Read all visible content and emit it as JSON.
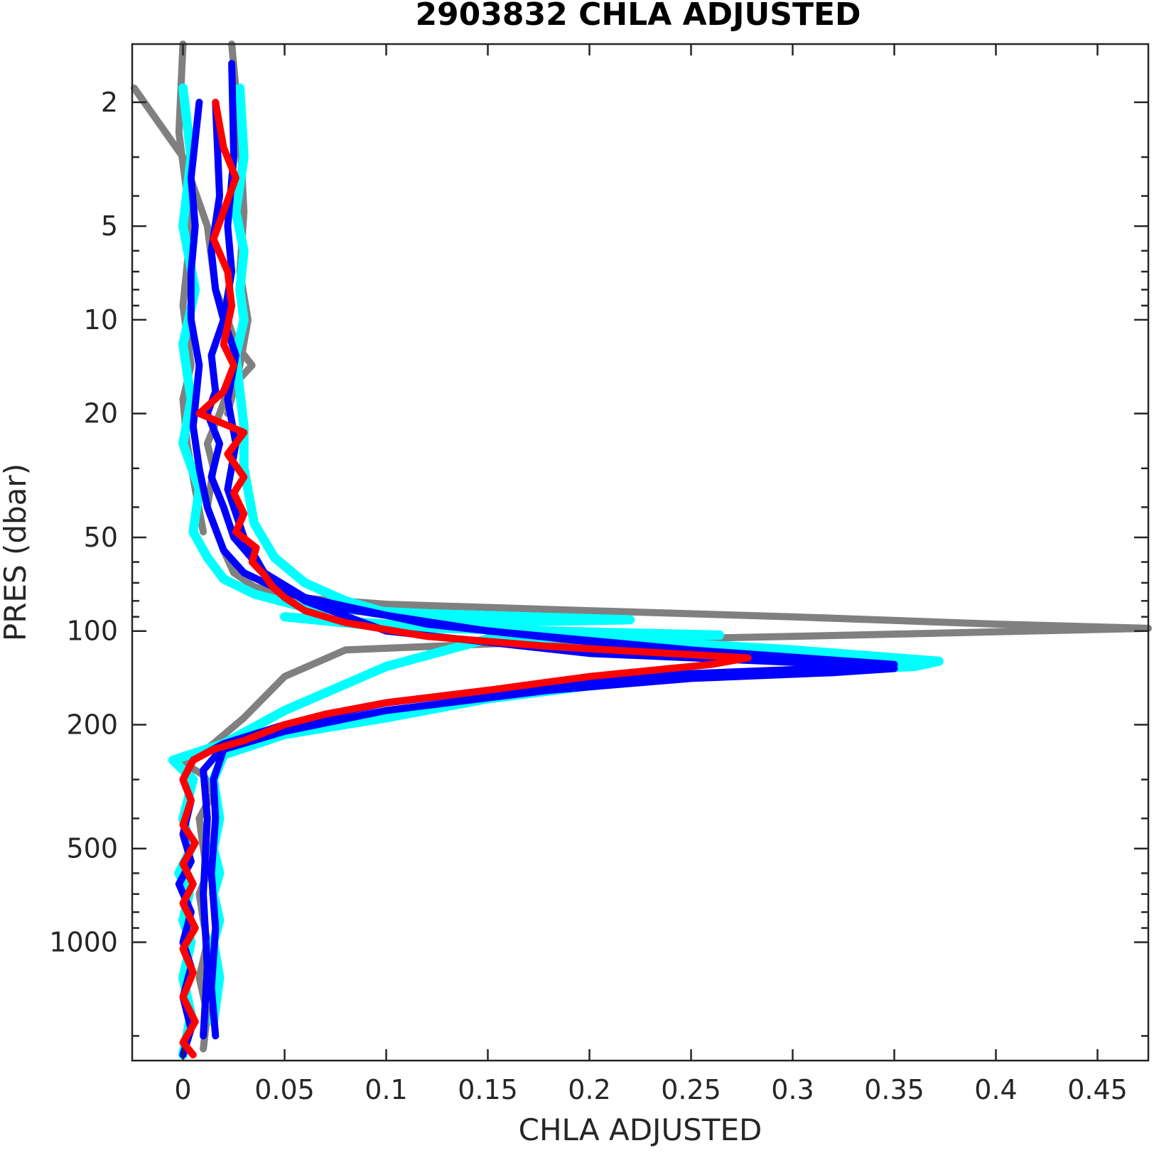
{
  "chart_data": {
    "type": "line",
    "title": "2903832  CHLA ADJUSTED",
    "xlabel": "CHLA ADJUSTED",
    "ylabel": "PRES (dbar)",
    "xlim": [
      -0.025,
      0.475
    ],
    "ylim": [
      1.3,
      2400
    ],
    "y_scale": "log",
    "y_reversed": true,
    "grid": false,
    "x_ticks": [
      0,
      0.05,
      0.1,
      0.15,
      0.2,
      0.25,
      0.3,
      0.35,
      0.4,
      0.45
    ],
    "x_tick_labels": [
      "0",
      "0.05",
      "0.1",
      "0.15",
      "0.2",
      "0.25",
      "0.3",
      "0.35",
      "0.4",
      "0.45"
    ],
    "y_ticks": [
      2,
      5,
      10,
      20,
      50,
      100,
      200,
      500,
      1000
    ],
    "y_tick_labels": [
      "2",
      "5",
      "10",
      "20",
      "50",
      "100",
      "200",
      "500",
      "1000"
    ],
    "colors": {
      "gray": "#808080",
      "cyan": "#00ffff",
      "blue": "#0000ff",
      "red": "#ff0000"
    },
    "series": [
      {
        "color": "gray",
        "x": [
          -0.024,
          0.0,
          0.012,
          0.016,
          0.022,
          0.026,
          0.034,
          0.022,
          0.018,
          0.012,
          0.015,
          0.012,
          0.02,
          0.025,
          0.035,
          0.055,
          0.1,
          0.2,
          0.3,
          0.4,
          0.475,
          0.33,
          0.18,
          0.08,
          0.05,
          0.03,
          0.015,
          0.008,
          0.0,
          0.01,
          0.015,
          0.008,
          0.01,
          0.012,
          0.008,
          0.01,
          0.012,
          0.008,
          0.012,
          0.01
        ],
        "y": [
          1.8,
          3.0,
          5.0,
          8.0,
          10.0,
          12.0,
          14.0,
          17.0,
          20.0,
          25.0,
          30.0,
          40.0,
          55.0,
          65.0,
          72.0,
          78.0,
          82.0,
          86.0,
          90.0,
          95.0,
          98.0,
          103.0,
          108.0,
          115.0,
          140.0,
          190.0,
          230.0,
          250.0,
          265.0,
          290.0,
          330.0,
          400.0,
          500.0,
          600.0,
          700.0,
          850.0,
          1000.0,
          1300.0,
          1700.0,
          2200.0
        ]
      },
      {
        "color": "gray",
        "x": [
          0.0,
          -0.002,
          0.004,
          0.0,
          0.004,
          0.0,
          0.002,
          0.006,
          0.01
        ],
        "y": [
          1.3,
          2.5,
          5.0,
          9.0,
          14.0,
          18.0,
          25.0,
          35.0,
          48.0
        ]
      },
      {
        "color": "gray",
        "x": [
          0.024,
          0.028,
          0.03,
          0.028,
          0.032,
          0.028,
          0.022
        ],
        "y": [
          1.3,
          2.5,
          4.5,
          7.0,
          10.0,
          14.0,
          20.0
        ]
      },
      {
        "color": "cyan",
        "x": [
          0.0,
          0.004,
          0.0,
          0.006,
          0.0,
          0.004,
          0.0,
          0.008,
          0.005,
          0.012,
          0.02,
          0.035,
          0.06,
          0.12,
          0.22,
          0.1,
          0.05,
          0.1,
          0.18,
          0.264,
          0.15,
          0.1,
          0.05,
          0.02,
          -0.005,
          0.005,
          0.0,
          0.004,
          -0.002,
          0.003,
          0.0,
          0.004,
          0.0,
          0.004,
          0.0
        ],
        "y": [
          1.8,
          3.0,
          5.0,
          8.0,
          12.0,
          18.0,
          25.0,
          35.0,
          48.0,
          58.0,
          68.0,
          76.0,
          84.0,
          88.0,
          92.0,
          95.0,
          90.0,
          97.0,
          100.0,
          103.0,
          106.0,
          130.0,
          180.0,
          230.0,
          260.0,
          300.0,
          400.0,
          500.0,
          600.0,
          700.0,
          850.0,
          1000.0,
          1300.0,
          1700.0,
          2300.0
        ]
      },
      {
        "color": "cyan",
        "x": [
          0.028,
          0.03,
          0.026,
          0.03,
          0.028,
          0.03,
          0.026,
          0.028,
          0.03,
          0.03,
          0.035,
          0.045,
          0.06,
          0.08,
          0.12,
          0.2,
          0.3,
          0.372,
          0.36,
          0.3,
          0.25,
          0.2,
          0.15,
          0.1,
          0.05,
          0.02,
          0.015,
          0.018,
          0.015,
          0.018,
          0.015,
          0.018,
          0.015,
          0.018,
          0.015
        ],
        "y": [
          1.8,
          3.0,
          4.5,
          6.0,
          8.0,
          10.0,
          13.0,
          17.0,
          22.0,
          30.0,
          45.0,
          58.0,
          70.0,
          80.0,
          95.0,
          105.0,
          115.0,
          125.0,
          130.0,
          135.0,
          140.0,
          150.0,
          165.0,
          190.0,
          215.0,
          250.0,
          300.0,
          400.0,
          500.0,
          600.0,
          700.0,
          850.0,
          1000.0,
          1300.0,
          1800.0
        ]
      },
      {
        "color": "blue",
        "x": [
          0.008,
          0.004,
          0.006,
          0.004,
          0.004,
          0.008,
          0.005,
          0.008,
          0.012,
          0.02,
          0.03,
          0.05,
          0.08,
          0.15,
          0.25,
          0.35,
          0.32,
          0.25,
          0.2,
          0.15,
          0.1,
          0.05,
          0.02,
          0.005,
          0.0,
          0.004,
          0.0,
          0.004,
          -0.002,
          0.004,
          0.0,
          0.004,
          0.0,
          0.004,
          0.0
        ],
        "y": [
          2.0,
          3.5,
          5.0,
          7.0,
          10.0,
          14.0,
          22.0,
          30.0,
          40.0,
          55.0,
          65.0,
          75.0,
          85.0,
          100.0,
          115.0,
          128.0,
          133.0,
          138.0,
          145.0,
          155.0,
          170.0,
          200.0,
          230.0,
          260.0,
          300.0,
          350.0,
          450.0,
          550.0,
          650.0,
          800.0,
          1000.0,
          1200.0,
          1500.0,
          1900.0,
          2300.0
        ]
      },
      {
        "color": "blue",
        "x": [
          0.016,
          0.018,
          0.014,
          0.016,
          0.02,
          0.014,
          0.016,
          0.012,
          0.018,
          0.014,
          0.02,
          0.025,
          0.04,
          0.06,
          0.1,
          0.2,
          0.3,
          0.35,
          0.32,
          0.25,
          0.18,
          0.1,
          0.05,
          0.02,
          0.015,
          0.016,
          0.014,
          0.016,
          0.014,
          0.016
        ],
        "y": [
          2.0,
          4.0,
          6.0,
          8.0,
          10.0,
          13.0,
          17.0,
          20.0,
          25.0,
          32.0,
          40.0,
          50.0,
          65.0,
          80.0,
          100.0,
          118.0,
          126.0,
          132.0,
          136.0,
          142.0,
          155.0,
          180.0,
          210.0,
          240.0,
          300.0,
          400.0,
          600.0,
          900.0,
          1400.0,
          2000.0
        ]
      },
      {
        "color": "blue",
        "x": [
          0.024,
          0.025,
          0.022,
          0.024,
          0.02,
          0.026,
          0.022,
          0.026,
          0.022,
          0.03,
          0.04,
          0.06,
          0.12,
          0.22,
          0.3,
          0.34,
          0.25,
          0.18,
          0.1,
          0.05,
          0.02,
          0.01,
          0.012,
          0.01,
          0.012,
          0.01
        ],
        "y": [
          1.5,
          3.0,
          5.0,
          7.0,
          10.0,
          13.0,
          18.0,
          25.0,
          35.0,
          50.0,
          65.0,
          78.0,
          95.0,
          112.0,
          124.0,
          130.0,
          137.0,
          148.0,
          170.0,
          200.0,
          235.0,
          280.0,
          400.0,
          700.0,
          1200.0,
          2000.0
        ]
      },
      {
        "color": "red",
        "x": [
          0.016,
          0.02,
          0.026,
          0.015,
          0.022,
          0.024,
          0.02,
          0.025,
          0.02,
          0.008,
          0.03,
          0.022,
          0.03,
          0.025,
          0.03,
          0.026,
          0.036,
          0.034,
          0.04,
          0.044,
          0.05,
          0.06,
          0.08,
          0.12,
          0.18,
          0.24,
          0.278,
          0.26,
          0.2,
          0.15,
          0.1,
          0.07,
          0.05,
          0.03,
          0.015,
          0.005,
          0.0,
          0.004,
          0.0,
          0.006,
          0.0,
          0.005,
          0.0,
          0.006,
          0.0,
          0.005,
          0.0,
          0.006,
          0.0,
          0.005
        ],
        "y": [
          2.0,
          2.8,
          3.5,
          5.5,
          7.0,
          9.0,
          12.0,
          14.0,
          17.0,
          20.0,
          23.0,
          27.0,
          32.0,
          36.0,
          42.0,
          48.0,
          54.0,
          60.0,
          66.0,
          72.0,
          78.0,
          86.0,
          94.0,
          104.0,
          112.0,
          118.0,
          122.0,
          128.0,
          140.0,
          155.0,
          170.0,
          185.0,
          200.0,
          225.0,
          240.0,
          260.0,
          300.0,
          350.0,
          420.0,
          480.0,
          560.0,
          650.0,
          750.0,
          900.0,
          1050.0,
          1250.0,
          1500.0,
          1800.0,
          2100.0,
          2300.0
        ]
      }
    ]
  }
}
